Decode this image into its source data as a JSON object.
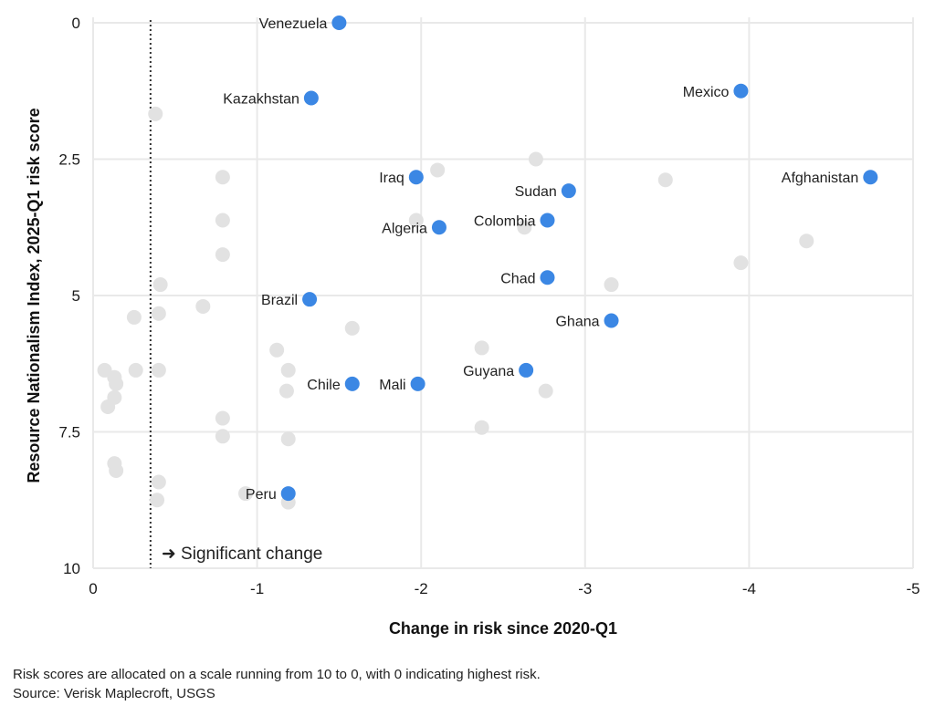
{
  "chart_data": {
    "type": "scatter",
    "xlabel": "Change in risk since 2020-Q1",
    "ylabel": "Resource Nationalism Index, 2025-Q1 risk score",
    "xlim": [
      0,
      -5
    ],
    "ylim": [
      0,
      10
    ],
    "x_ticks": [
      "0",
      "-1",
      "-2",
      "-3",
      "-4",
      "-5"
    ],
    "y_ticks": [
      "0",
      "2.5",
      "5",
      "7.5",
      "10"
    ],
    "y_inverted": true,
    "grid": true,
    "reference_line": {
      "x": -0.35,
      "style": "dotted",
      "label": "➜ Significant change"
    },
    "colors": {
      "highlight": "#3b87e4",
      "background": "#e2e2e2",
      "grid": "#e9e9e9"
    },
    "highlighted": [
      {
        "name": "Venezuela",
        "x": -1.5,
        "y": 0.0
      },
      {
        "name": "Kazakhstan",
        "x": -1.33,
        "y": 1.38
      },
      {
        "name": "Mexico",
        "x": -3.95,
        "y": 1.25
      },
      {
        "name": "Iraq",
        "x": -1.97,
        "y": 2.83
      },
      {
        "name": "Afghanistan",
        "x": -4.74,
        "y": 2.83
      },
      {
        "name": "Sudan",
        "x": -2.9,
        "y": 3.08
      },
      {
        "name": "Colombia",
        "x": -2.77,
        "y": 3.62
      },
      {
        "name": "Algeria",
        "x": -2.11,
        "y": 3.75
      },
      {
        "name": "Chad",
        "x": -2.77,
        "y": 4.67
      },
      {
        "name": "Brazil",
        "x": -1.32,
        "y": 5.07
      },
      {
        "name": "Ghana",
        "x": -3.16,
        "y": 5.46
      },
      {
        "name": "Guyana",
        "x": -2.64,
        "y": 6.37
      },
      {
        "name": "Chile",
        "x": -1.58,
        "y": 6.62
      },
      {
        "name": "Mali",
        "x": -1.98,
        "y": 6.62
      },
      {
        "name": "Peru",
        "x": -1.19,
        "y": 8.63
      }
    ],
    "others": [
      {
        "x": -0.38,
        "y": 1.67
      },
      {
        "x": -0.79,
        "y": 2.83
      },
      {
        "x": -0.79,
        "y": 3.62
      },
      {
        "x": -0.79,
        "y": 4.25
      },
      {
        "x": -0.41,
        "y": 4.8
      },
      {
        "x": -0.67,
        "y": 5.2
      },
      {
        "x": -0.25,
        "y": 5.4
      },
      {
        "x": -0.4,
        "y": 5.33
      },
      {
        "x": -1.58,
        "y": 5.6
      },
      {
        "x": -1.12,
        "y": 6.0
      },
      {
        "x": -2.37,
        "y": 5.96
      },
      {
        "x": -0.07,
        "y": 6.37
      },
      {
        "x": -0.26,
        "y": 6.37
      },
      {
        "x": -0.4,
        "y": 6.37
      },
      {
        "x": -0.13,
        "y": 6.5
      },
      {
        "x": -0.14,
        "y": 6.62
      },
      {
        "x": -1.19,
        "y": 6.37
      },
      {
        "x": -0.13,
        "y": 6.87
      },
      {
        "x": -0.09,
        "y": 7.04
      },
      {
        "x": -1.18,
        "y": 6.75
      },
      {
        "x": -0.79,
        "y": 7.25
      },
      {
        "x": -0.79,
        "y": 7.58
      },
      {
        "x": -1.19,
        "y": 7.63
      },
      {
        "x": -2.37,
        "y": 7.42
      },
      {
        "x": -0.13,
        "y": 8.08
      },
      {
        "x": -0.14,
        "y": 8.21
      },
      {
        "x": -0.4,
        "y": 8.42
      },
      {
        "x": -0.39,
        "y": 8.75
      },
      {
        "x": -0.93,
        "y": 8.63
      },
      {
        "x": -1.19,
        "y": 8.79
      },
      {
        "x": -2.1,
        "y": 2.7
      },
      {
        "x": -2.7,
        "y": 2.5
      },
      {
        "x": -3.49,
        "y": 2.88
      },
      {
        "x": -1.97,
        "y": 3.62
      },
      {
        "x": -2.63,
        "y": 3.75
      },
      {
        "x": -4.35,
        "y": 4.0
      },
      {
        "x": -3.95,
        "y": 4.4
      },
      {
        "x": -3.16,
        "y": 4.8
      },
      {
        "x": -2.76,
        "y": 6.75
      }
    ]
  },
  "footer": {
    "note": "Risk scores are allocated on a scale running from 10 to 0, with 0 indicating highest risk.",
    "source": "Source: Verisk Maplecroft, USGS"
  }
}
